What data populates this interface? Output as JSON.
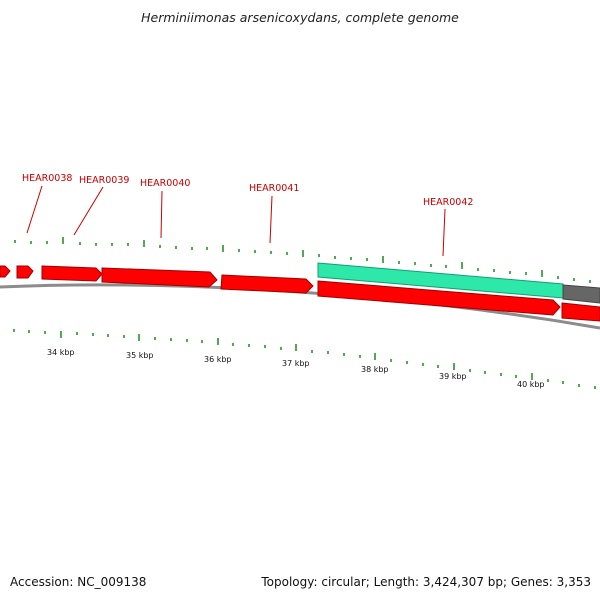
{
  "title": "Herminiimonas arsenicoxydans, complete genome",
  "footer": {
    "accession_label": "Accession: NC_009138",
    "summary_label": "Topology: circular; Length: 3,424,307 bp; Genes: 3,353"
  },
  "colors": {
    "gene_forward": "#ff0000",
    "gene_reverse": "#ff0000",
    "gene_highlight": "#2de8a8",
    "gene_other": "#666666",
    "backbone": "#8c8c8c",
    "tick": "#1a8a1a",
    "label": "#cc0000"
  },
  "gene_labels": [
    "HEAR0038",
    "HEAR0039",
    "HEAR0040",
    "HEAR0041",
    "HEAR0042"
  ],
  "kbp_labels": [
    "34 kbp",
    "35 kbp",
    "36 kbp",
    "37 kbp",
    "38 kbp",
    "39 kbp",
    "40 kbp"
  ]
}
